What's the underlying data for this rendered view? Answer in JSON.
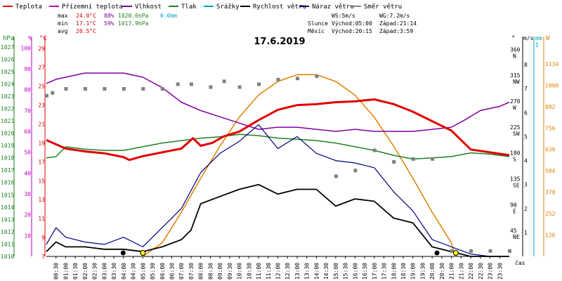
{
  "chart_data": {
    "type": "line",
    "title": "17.6.2019",
    "legend": [
      {
        "label": "Teplota",
        "color": "#e00000"
      },
      {
        "label": "Přízemní teplota",
        "color": "#c000c0"
      },
      {
        "label": "Vlhkost",
        "color": "#8000a0"
      },
      {
        "label": "Tlak",
        "color": "#208020"
      },
      {
        "label": "Srážky",
        "color": "#00a0c0"
      },
      {
        "label": "Rychlost větru",
        "color": "#000000"
      },
      {
        "label": "Náraz větru",
        "color": "#000080"
      },
      {
        "label": "Směr větru",
        "color": "#808080"
      }
    ],
    "stats": {
      "max_label": "max",
      "max_temp": "24.0°C",
      "max_hum": "88%",
      "max_press": "1020.6hPa",
      "rain": "0.0mm",
      "min_label": "min",
      "min_temp": "17.1°C",
      "min_hum": "59%",
      "min_press": "1017.9hPa",
      "avg_label": "avg",
      "avg_temp": "20.5°C",
      "ws": "WS:5m/s",
      "wg": "WG:7.2m/s",
      "sun_label": "Slunce",
      "sunrise": "Východ:05:00",
      "sunset": "Západ:21:14",
      "moon_label": "Měsíc",
      "moonrise": "Východ:20:15",
      "moonset": "Západ:3:59"
    },
    "axes": {
      "hpa_unit": "hPa",
      "hpa_ticks": [
        "1027",
        "1026",
        "1025",
        "1024",
        "1023",
        "1022",
        "1021",
        "1020",
        "1019",
        "1018",
        "1017",
        "1016",
        "1015",
        "1014",
        "1013",
        "1012",
        "1011",
        "1010"
      ],
      "pct_unit": "%",
      "pct_ticks": [
        "100",
        "90",
        "80",
        "70",
        "60",
        "50",
        "40",
        "30",
        "20",
        "10"
      ],
      "c_unit": "°C",
      "c_ticks": [
        "29",
        "27",
        "25",
        "23",
        "21",
        "19",
        "17",
        "15",
        "13",
        "11",
        "9",
        "7"
      ],
      "deg_unit": "°",
      "deg_ticks": [
        {
          "v": "360",
          "d": "N"
        },
        {
          "v": "315",
          "d": "NW"
        },
        {
          "v": "270",
          "d": "W"
        },
        {
          "v": "225",
          "d": "SW"
        },
        {
          "v": "180",
          "d": "S"
        },
        {
          "v": "135",
          "d": "SE"
        },
        {
          "v": "90",
          "d": "E"
        },
        {
          "v": "45",
          "d": "NE"
        }
      ],
      "ms_unit": "m/s",
      "ms_ticks": [
        "8",
        "7",
        "6",
        "5",
        "4",
        "3",
        "2",
        "1"
      ],
      "mm_unit": "mm",
      "mm_ticks": [
        "1"
      ],
      "w_unit": "W",
      "w_ticks": [
        "1134",
        "1008",
        "882",
        "756",
        "630",
        "504",
        "378",
        "252",
        "126"
      ],
      "x_unit": "čas",
      "x_ticks": [
        "00:30",
        "01:00",
        "01:30",
        "02:00",
        "02:30",
        "03:00",
        "03:30",
        "04:00",
        "04:30",
        "05:00",
        "05:30",
        "06:00",
        "06:30",
        "07:00",
        "07:30",
        "08:00",
        "08:30",
        "09:00",
        "09:30",
        "10:00",
        "10:30",
        "11:00",
        "11:30",
        "12:00",
        "12:30",
        "13:00",
        "13:30",
        "14:00",
        "14:30",
        "15:00",
        "15:30",
        "16:00",
        "16:30",
        "17:00",
        "17:30",
        "18:00",
        "18:30",
        "19:00",
        "19:30",
        "20:00",
        "20:30",
        "21:00",
        "21:30",
        "22:00",
        "22:30",
        "23:00",
        "23:30"
      ]
    },
    "x_range_hours": [
      0,
      24
    ],
    "temperature_c": [
      [
        0,
        19.3
      ],
      [
        1,
        18.4
      ],
      [
        2,
        18.1
      ],
      [
        3,
        17.9
      ],
      [
        4,
        17.5
      ],
      [
        4.3,
        17.2
      ],
      [
        5,
        17.6
      ],
      [
        6,
        18
      ],
      [
        6.5,
        18.2
      ],
      [
        7,
        18.4
      ],
      [
        7.6,
        19.5
      ],
      [
        8,
        18.7
      ],
      [
        8.6,
        19
      ],
      [
        9.2,
        19.7
      ],
      [
        10,
        20.2
      ],
      [
        11,
        21.4
      ],
      [
        12,
        22.5
      ],
      [
        13,
        23.0
      ],
      [
        14,
        23.1
      ],
      [
        15,
        23.3
      ],
      [
        16,
        23.4
      ],
      [
        17,
        23.6
      ],
      [
        18,
        23.1
      ],
      [
        19,
        22.3
      ],
      [
        20,
        21.3
      ],
      [
        21,
        20.3
      ],
      [
        22,
        18.3
      ],
      [
        23,
        18
      ],
      [
        24,
        17.7
      ]
    ],
    "humidity_pct": [
      [
        0,
        83
      ],
      [
        0.5,
        85
      ],
      [
        1,
        86
      ],
      [
        2,
        88
      ],
      [
        3,
        88
      ],
      [
        4,
        88
      ],
      [
        5,
        86
      ],
      [
        6,
        81
      ],
      [
        7,
        74
      ],
      [
        8,
        70
      ],
      [
        9,
        67
      ],
      [
        10,
        64
      ],
      [
        11,
        61
      ],
      [
        12,
        62
      ],
      [
        13,
        62
      ],
      [
        14,
        61
      ],
      [
        15,
        60
      ],
      [
        16,
        61
      ],
      [
        17,
        60
      ],
      [
        18,
        60
      ],
      [
        19,
        60
      ],
      [
        20,
        61
      ],
      [
        21,
        62
      ],
      [
        21.6,
        65
      ],
      [
        22.5,
        70
      ],
      [
        23,
        71
      ],
      [
        23.5,
        72
      ],
      [
        24,
        74
      ]
    ],
    "pressure_hpa": [
      [
        0,
        1018.0
      ],
      [
        0.5,
        1018.1
      ],
      [
        1,
        1018.9
      ],
      [
        2,
        1018.7
      ],
      [
        3,
        1018.6
      ],
      [
        4,
        1018.6
      ],
      [
        5,
        1018.9
      ],
      [
        6,
        1019.2
      ],
      [
        7,
        1019.4
      ],
      [
        8,
        1019.6
      ],
      [
        9,
        1019.7
      ],
      [
        10,
        1019.9
      ],
      [
        11,
        1019.8
      ],
      [
        12,
        1019.6
      ],
      [
        13,
        1019.5
      ],
      [
        14,
        1019.4
      ],
      [
        15,
        1019.2
      ],
      [
        16,
        1018.9
      ],
      [
        17,
        1018.6
      ],
      [
        18,
        1018.2
      ],
      [
        19,
        1017.9
      ],
      [
        20,
        1018.0
      ],
      [
        21,
        1018.1
      ],
      [
        22,
        1018.4
      ],
      [
        23,
        1018.3
      ],
      [
        24,
        1018.1
      ]
    ],
    "wind_speed_ms": [
      [
        0,
        0.2
      ],
      [
        0.5,
        0.6
      ],
      [
        1,
        0.4
      ],
      [
        2,
        0.4
      ],
      [
        3,
        0.3
      ],
      [
        4,
        0.3
      ],
      [
        5,
        0.2
      ],
      [
        6,
        0.4
      ],
      [
        7,
        0.7
      ],
      [
        7.5,
        1.1
      ],
      [
        8,
        2.2
      ],
      [
        9,
        2.5
      ],
      [
        10,
        2.8
      ],
      [
        11,
        3.0
      ],
      [
        12,
        2.6
      ],
      [
        13,
        2.8
      ],
      [
        14,
        2.8
      ],
      [
        15,
        2.1
      ],
      [
        16,
        2.4
      ],
      [
        17,
        2.3
      ],
      [
        18,
        1.6
      ],
      [
        19,
        1.4
      ],
      [
        20,
        0.4
      ],
      [
        21,
        0.2
      ],
      [
        22,
        0
      ],
      [
        23,
        0
      ],
      [
        24,
        0
      ]
    ],
    "wind_gust_ms": [
      [
        0,
        0.5
      ],
      [
        0.5,
        1.2
      ],
      [
        1,
        0.8
      ],
      [
        2,
        0.6
      ],
      [
        3,
        0.5
      ],
      [
        4,
        0.8
      ],
      [
        5,
        0.4
      ],
      [
        6,
        1.2
      ],
      [
        7,
        2.0
      ],
      [
        8,
        3.5
      ],
      [
        9,
        4.3
      ],
      [
        10,
        4.8
      ],
      [
        11,
        5.5
      ],
      [
        12,
        4.5
      ],
      [
        13,
        5.0
      ],
      [
        14,
        4.3
      ],
      [
        15,
        4.0
      ],
      [
        16,
        3.9
      ],
      [
        17,
        3.7
      ],
      [
        18,
        2.7
      ],
      [
        19,
        1.9
      ],
      [
        20,
        0.7
      ],
      [
        21,
        0.4
      ],
      [
        22,
        0.1
      ],
      [
        23,
        0
      ],
      [
        24,
        0
      ]
    ],
    "wind_dir_deg": [
      [
        0,
        280
      ],
      [
        0.3,
        285
      ],
      [
        1,
        292
      ],
      [
        2,
        292
      ],
      [
        3,
        292
      ],
      [
        4,
        292
      ],
      [
        5,
        292
      ],
      [
        6,
        292
      ],
      [
        6.8,
        300
      ],
      [
        7.5,
        300
      ],
      [
        8.5,
        295
      ],
      [
        9.2,
        305
      ],
      [
        10,
        295
      ],
      [
        11,
        300
      ],
      [
        12,
        308
      ],
      [
        13,
        310
      ],
      [
        14,
        314
      ],
      [
        15,
        140
      ],
      [
        16,
        150
      ],
      [
        17,
        185
      ],
      [
        18,
        165
      ],
      [
        19,
        170
      ],
      [
        20,
        170
      ],
      [
        21,
        10
      ],
      [
        22,
        10
      ],
      [
        23,
        10
      ],
      [
        24,
        10
      ]
    ],
    "solar_w": [
      [
        5,
        0
      ],
      [
        6,
        80
      ],
      [
        7,
        260
      ],
      [
        8,
        460
      ],
      [
        9,
        650
      ],
      [
        10,
        820
      ],
      [
        11,
        950
      ],
      [
        12,
        1030
      ],
      [
        13,
        1070
      ],
      [
        14,
        1070
      ],
      [
        15,
        1030
      ],
      [
        16,
        950
      ],
      [
        17,
        820
      ],
      [
        18,
        650
      ],
      [
        19,
        460
      ],
      [
        20,
        260
      ],
      [
        21,
        80
      ],
      [
        21.2,
        0
      ]
    ],
    "rain_mm": 0.0,
    "sun_markers": {
      "sunrise_h": 5.0,
      "sunset_h": 21.23
    },
    "moon_markers": {
      "moonset_h": 3.98,
      "moonrise_h": 20.25
    }
  }
}
